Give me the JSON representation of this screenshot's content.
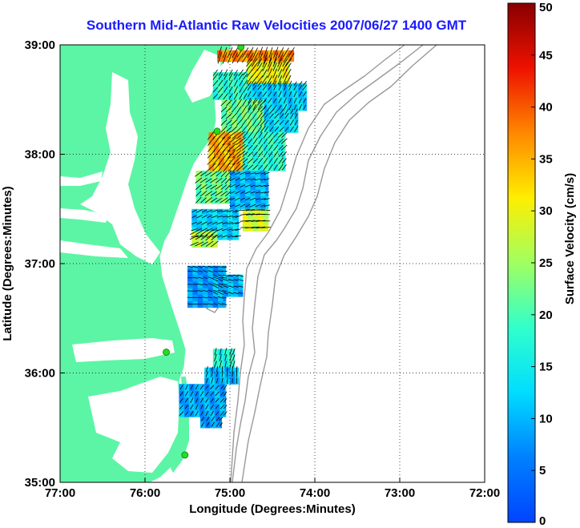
{
  "title": "Southern Mid-Atlantic Raw Velocities 2007/06/27 1400 GMT",
  "map": {
    "xlabel": "Longitude (Degrees:Minutes)",
    "ylabel": "Latitude (Degrees:Minutes)",
    "lon_range": [
      -77,
      -72
    ],
    "lat_range": [
      35,
      39
    ],
    "lon_ticks": [
      {
        "value": -77,
        "label": "77:00"
      },
      {
        "value": -76,
        "label": "76:00"
      },
      {
        "value": -75,
        "label": "75:00"
      },
      {
        "value": -74,
        "label": "74:00"
      },
      {
        "value": -73,
        "label": "73:00"
      },
      {
        "value": -72,
        "label": "72:00"
      }
    ],
    "lat_ticks": [
      {
        "value": 39,
        "label": "39:00"
      },
      {
        "value": 38,
        "label": "38:00"
      },
      {
        "value": 37,
        "label": "37:00"
      },
      {
        "value": 36,
        "label": "36:00"
      },
      {
        "value": 35,
        "label": "35:00"
      }
    ],
    "grid": "dotted",
    "land_color": "#5cf5a5",
    "contour_color": "#999999",
    "station_color": "#22dd22",
    "stations": [
      {
        "lon": -74.87,
        "lat": 38.98
      },
      {
        "lon": -75.15,
        "lat": 38.21
      },
      {
        "lon": -75.75,
        "lat": 36.19
      },
      {
        "lon": -75.53,
        "lat": 35.25
      }
    ]
  },
  "colorbar": {
    "label": "Surface Velocity (cm/s)",
    "min": 0,
    "max": 50,
    "colormap": "jet",
    "ticks": [
      "0",
      "5",
      "10",
      "15",
      "20",
      "25",
      "30",
      "35",
      "40",
      "45",
      "50"
    ]
  },
  "chart_data": {
    "type": "heatmap",
    "title": "Southern Mid-Atlantic Raw Velocities 2007/06/27 1400 GMT",
    "xlabel": "Longitude (Degrees:Minutes)",
    "ylabel": "Latitude (Degrees:Minutes)",
    "xlim": [
      -77,
      -72
    ],
    "ylim": [
      35,
      39
    ],
    "units": "cm/s",
    "color_range": [
      0,
      50
    ],
    "cell_size_deg": 0.06,
    "regions": [
      {
        "lon": [
          -75.15,
          -74.25
        ],
        "lat": [
          38.85,
          38.95
        ],
        "speed": 37,
        "dir": 205
      },
      {
        "lon": [
          -74.8,
          -74.3
        ],
        "lat": [
          38.65,
          38.85
        ],
        "speed": 30,
        "dir": 210
      },
      {
        "lon": [
          -75.2,
          -74.8
        ],
        "lat": [
          38.5,
          38.75
        ],
        "speed": 18,
        "dir": 215
      },
      {
        "lon": [
          -74.8,
          -74.1
        ],
        "lat": [
          38.4,
          38.65
        ],
        "speed": 12,
        "dir": 210
      },
      {
        "lon": [
          -75.1,
          -74.6
        ],
        "lat": [
          38.2,
          38.5
        ],
        "speed": 22,
        "dir": 220
      },
      {
        "lon": [
          -74.6,
          -74.2
        ],
        "lat": [
          38.2,
          38.4
        ],
        "speed": 13,
        "dir": 215
      },
      {
        "lon": [
          -75.25,
          -74.85
        ],
        "lat": [
          37.85,
          38.2
        ],
        "speed": 35,
        "dir": 225
      },
      {
        "lon": [
          -74.85,
          -74.35
        ],
        "lat": [
          37.85,
          38.2
        ],
        "speed": 18,
        "dir": 220
      },
      {
        "lon": [
          -75.4,
          -75.0
        ],
        "lat": [
          37.55,
          37.85
        ],
        "speed": 22,
        "dir": 230
      },
      {
        "lon": [
          -75.0,
          -74.55
        ],
        "lat": [
          37.5,
          37.85
        ],
        "speed": 10,
        "dir": 250
      },
      {
        "lon": [
          -74.85,
          -74.55
        ],
        "lat": [
          37.3,
          37.5
        ],
        "speed": 28,
        "dir": 270
      },
      {
        "lon": [
          -75.45,
          -74.9
        ],
        "lat": [
          37.22,
          37.5
        ],
        "speed": 12,
        "dir": 250
      },
      {
        "lon": [
          -75.45,
          -75.15
        ],
        "lat": [
          37.15,
          37.3
        ],
        "speed": 26,
        "dir": 240
      },
      {
        "lon": [
          -75.5,
          -75.05
        ],
        "lat": [
          36.6,
          36.98
        ],
        "speed": 8,
        "dir": 100
      },
      {
        "lon": [
          -75.2,
          -74.85
        ],
        "lat": [
          36.7,
          36.9
        ],
        "speed": 10,
        "dir": 110
      },
      {
        "lon": [
          -75.2,
          -74.95
        ],
        "lat": [
          36.05,
          36.22
        ],
        "speed": 17,
        "dir": 20
      },
      {
        "lon": [
          -75.3,
          -74.9
        ],
        "lat": [
          35.9,
          36.05
        ],
        "speed": 10,
        "dir": 10
      },
      {
        "lon": [
          -75.6,
          -75.05
        ],
        "lat": [
          35.6,
          35.9
        ],
        "speed": 9,
        "dir": 35
      },
      {
        "lon": [
          -75.35,
          -75.1
        ],
        "lat": [
          35.5,
          35.6
        ],
        "speed": 8,
        "dir": 40
      }
    ]
  }
}
